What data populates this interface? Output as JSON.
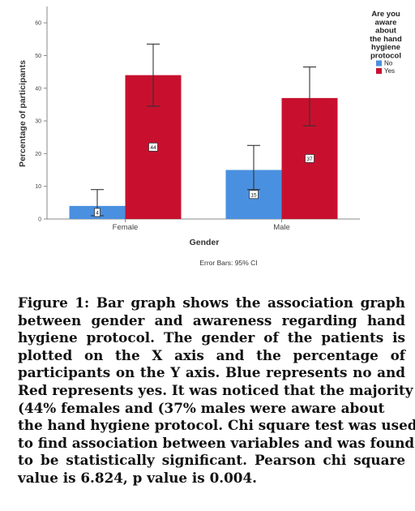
{
  "chart_data": {
    "type": "bar",
    "categories": [
      "Female",
      "Male"
    ],
    "series": [
      {
        "name": "No",
        "color": "#4a90e0",
        "values": [
          4,
          15
        ],
        "error_low": [
          1,
          9
        ],
        "error_high": [
          9,
          22.5
        ]
      },
      {
        "name": "Yes",
        "color": "#c8102e",
        "values": [
          44,
          37
        ],
        "error_low": [
          34.5,
          28.5
        ],
        "error_high": [
          53.5,
          46.5
        ]
      }
    ],
    "data_labels": [
      [
        "4",
        "15"
      ],
      [
        "44",
        "37"
      ]
    ],
    "xlabel": "Gender",
    "ylabel": "Percentage of participants",
    "ylim": [
      0,
      65
    ],
    "yticks": [
      0,
      10,
      20,
      30,
      40,
      50,
      60
    ],
    "legend_title": "Are you aware about the hand hygiene protocol",
    "legend_title_lines": [
      "Are you",
      "aware",
      "about",
      "the hand",
      "hygiene",
      "protocol"
    ],
    "legend_position": "top-right",
    "footnote": "Error Bars: 95% CI",
    "grid": false
  },
  "caption_lines": [
    "Figure 1: Bar graph shows the association graph",
    "between gender and awareness regarding hand",
    "hygiene protocol. The gender of the patients is",
    "plotted on the X axis and the percentage of",
    "participants on the Y axis. Blue represents no and",
    "Red represents yes. It was noticed that the majority",
    "(44% females and (37% males were aware about",
    "the hand hygiene protocol. Chi square test was used",
    "to find association between variables and was found",
    "to be statistically significant. Pearson chi square",
    "value is 6.824, p value is 0.004."
  ]
}
